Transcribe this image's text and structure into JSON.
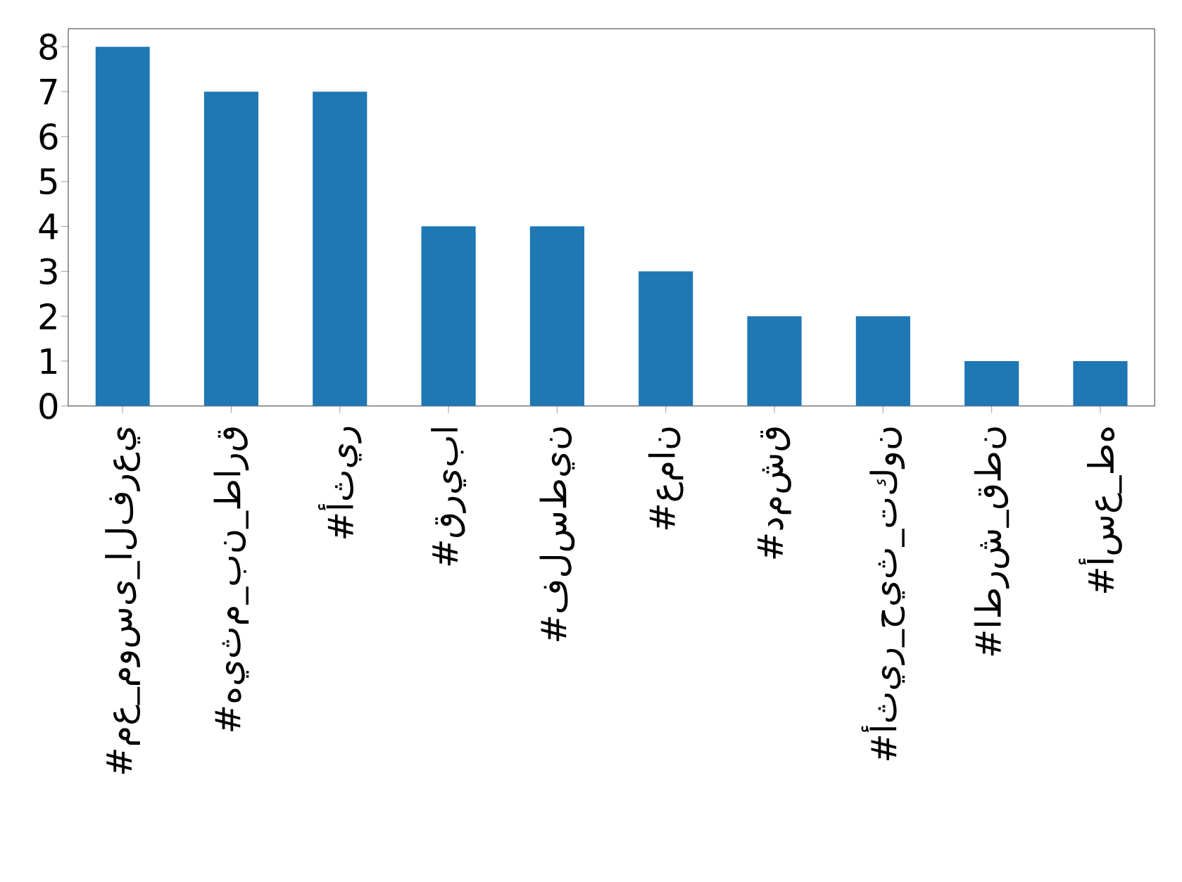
{
  "chart_data": {
    "type": "bar",
    "categories": [
      "#مع_موسى_الفرعي",
      "#هيثم_بن_طارق",
      "#أثير",
      "#قريبا",
      "#فلسطين",
      "#عمان",
      "#دمشق",
      "#أثير_حيث_تكون",
      "#اطرش_قطن",
      "#أسع_طه"
    ],
    "values": [
      8,
      7,
      7,
      4,
      4,
      3,
      2,
      2,
      1,
      1
    ],
    "color": "#1f77b4",
    "ylim": [
      0,
      8.4
    ],
    "yticks": [
      0,
      1,
      2,
      3,
      4,
      5,
      6,
      7,
      8
    ],
    "grid": false
  }
}
